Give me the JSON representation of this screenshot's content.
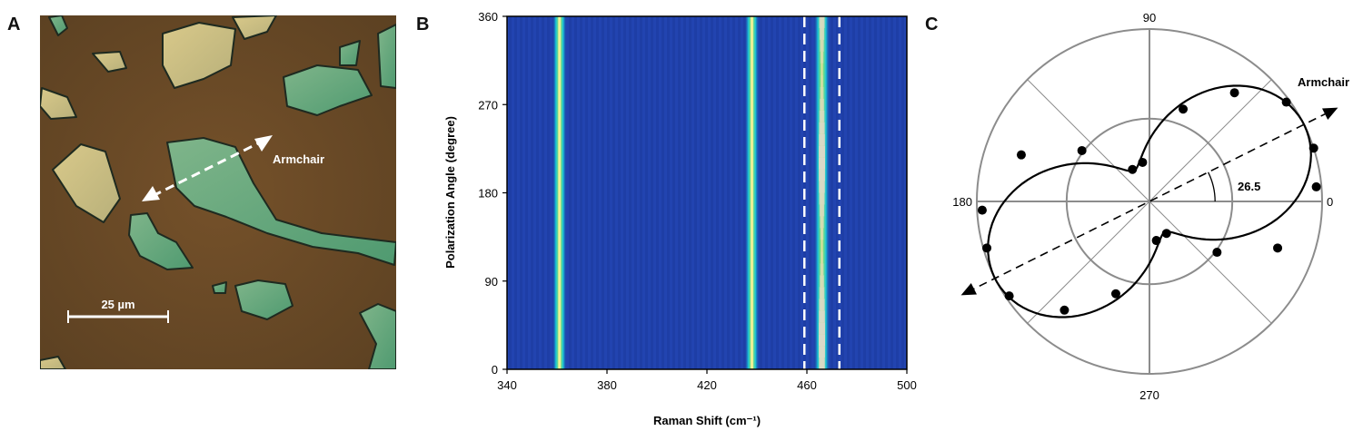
{
  "panels": {
    "a": {
      "letter": "A",
      "arrow_label": "Armchair",
      "scale_label": "25 µm"
    },
    "b": {
      "letter": "B"
    },
    "c": {
      "letter": "C"
    }
  },
  "chart_data": [
    {
      "type": "heatmap",
      "xlabel": "Raman Shift (cm⁻¹)",
      "ylabel": "Polarization Angle (degree)",
      "xlim": [
        340,
        500
      ],
      "ylim": [
        0,
        360
      ],
      "xticks": [
        340,
        380,
        420,
        460,
        500
      ],
      "yticks": [
        0,
        90,
        180,
        270,
        360
      ],
      "peaks": [
        {
          "position": 361,
          "intensity": "medium"
        },
        {
          "position": 438,
          "intensity": "medium"
        },
        {
          "position": 466,
          "intensity": "strong"
        }
      ],
      "marked_range": [
        459,
        473
      ],
      "colors": {
        "background": "#1f3fa8",
        "low": "#1f3fa8",
        "mid": "#18c4d8",
        "high": "#f2ee5a",
        "peak": "#d9d9c8"
      }
    },
    {
      "type": "scatter",
      "subtype": "polar",
      "angle_labels": [
        "0",
        "90",
        "180",
        "270"
      ],
      "armchair_label": "Armchair",
      "armchair_angle": 26.5,
      "angle_annotation": "26.5",
      "points": [
        {
          "theta": 5,
          "r": 0.97
        },
        {
          "theta": 18,
          "r": 1.0
        },
        {
          "theta": 36,
          "r": 0.98
        },
        {
          "theta": 52,
          "r": 0.8
        },
        {
          "theta": 70,
          "r": 0.57
        },
        {
          "theta": 100,
          "r": 0.23
        },
        {
          "theta": 118,
          "r": 0.21
        },
        {
          "theta": 143,
          "r": 0.49
        },
        {
          "theta": 160,
          "r": 0.79
        },
        {
          "theta": 183,
          "r": 0.97
        },
        {
          "theta": 196,
          "r": 0.98
        },
        {
          "theta": 214,
          "r": 0.98
        },
        {
          "theta": 232,
          "r": 0.8
        },
        {
          "theta": 250,
          "r": 0.57
        },
        {
          "theta": 280,
          "r": 0.23
        },
        {
          "theta": 298,
          "r": 0.21
        },
        {
          "theta": 323,
          "r": 0.49
        },
        {
          "theta": 340,
          "r": 0.79
        }
      ]
    }
  ]
}
